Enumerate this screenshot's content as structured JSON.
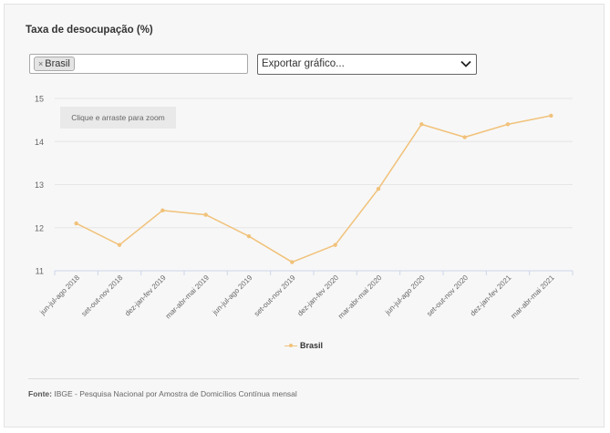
{
  "title": "Taxa de desocupação (%)",
  "filter": {
    "remove_symbol": "×",
    "tag_label": "Brasil"
  },
  "export": {
    "label": "Exportar gráfico..."
  },
  "zoom_hint": "Clique e arraste para zoom",
  "source": {
    "label": "Fonte:",
    "text": "IBGE - Pesquisa Nacional por Amostra de Domicílios Contínua mensal"
  },
  "colors": {
    "series": "#f1c27a",
    "grid": "#e6e6e6"
  },
  "chart_data": {
    "type": "line",
    "categories": [
      "jun-jul-ago 2018",
      "set-out-nov 2018",
      "dez-jan-fev 2019",
      "mar-abr-mai 2019",
      "jun-jul-ago 2019",
      "set-out-nov 2019",
      "dez-jan-fev 2020",
      "mar-abr-mai 2020",
      "jun-jul-ago 2020",
      "set-out-nov 2020",
      "dez-jan-fev 2021",
      "mar-abr-mai 2021"
    ],
    "series": [
      {
        "name": "Brasil",
        "values": [
          12.1,
          11.6,
          12.4,
          12.3,
          11.8,
          11.2,
          11.6,
          12.9,
          14.4,
          14.1,
          14.4,
          14.6
        ]
      }
    ],
    "yticks": [
      11,
      12,
      13,
      14,
      15
    ],
    "ylim": [
      11,
      15
    ],
    "grid": true,
    "legend": "bottom-center"
  }
}
